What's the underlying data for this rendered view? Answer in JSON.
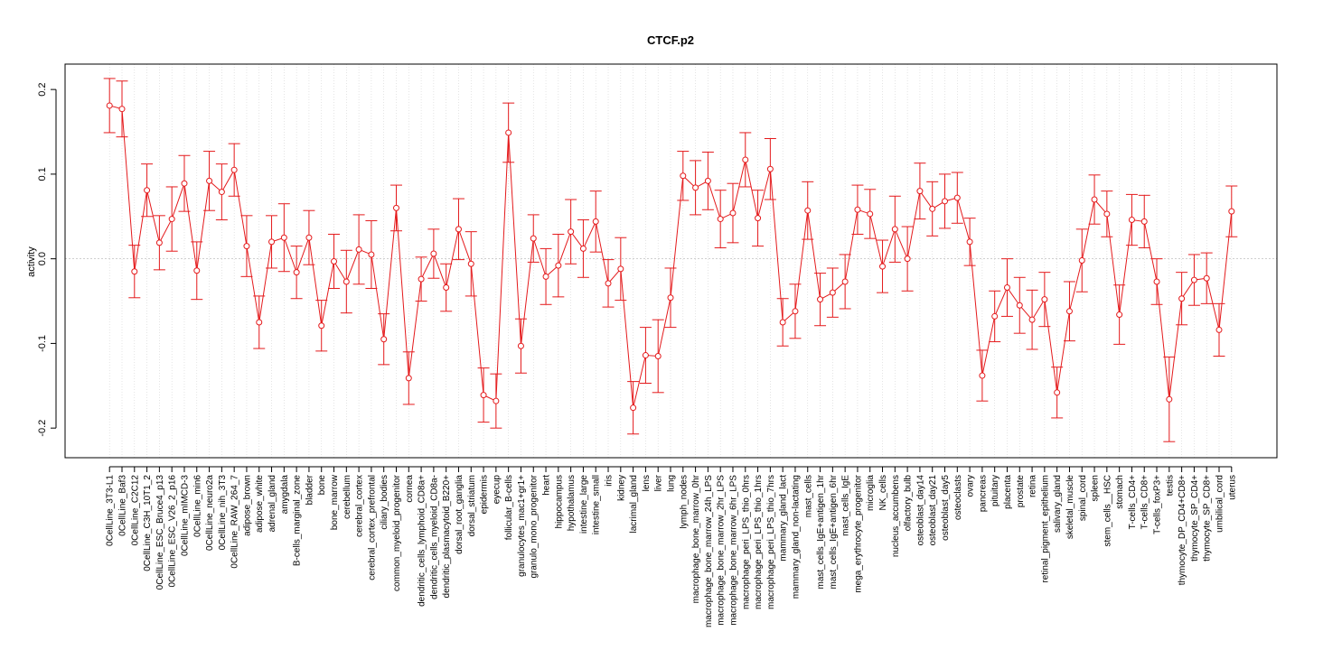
{
  "chart_data": {
    "type": "line",
    "title": "CTCF.p2",
    "xlabel": "",
    "ylabel": "activity",
    "ylim": [
      -0.235,
      0.23
    ],
    "yticks": [
      -0.2,
      -0.1,
      0.0,
      0.1,
      0.2
    ],
    "ytick_labels": [
      "-0.2",
      "-0.1",
      "0.0",
      "0.1",
      "0.2"
    ],
    "grid": true,
    "reference_line": 0,
    "color": "#e41a1c",
    "categories": [
      "0CellLine_3T3-L1",
      "0CellLine_Baf3",
      "0CellLine_C2C12",
      "0CellLine_C3H_10T1_2",
      "0CellLine_ESC_Bruce4_p13",
      "0CellLine_ESC_V26_2_p16",
      "0CellLine_mIMCD-3",
      "0CellLine_min6",
      "0CellLine_neuro2a",
      "0CellLine_nih_3T3",
      "0CellLine_RAW_264_7",
      "adipose_brown",
      "adipose_white",
      "adrenal_gland",
      "amygdala",
      "B-cells_marginal_zone",
      "bladder",
      "bone",
      "bone_marrow",
      "cerebellum",
      "cerebral_cortex",
      "cerebral_cortex_prefrontal",
      "ciliary_bodies",
      "common_myeloid_progenitor",
      "cornea",
      "dendritic_cells_lymphoid_CD8a+",
      "dendritic_cells_myeloid_CD8a-",
      "dendritic_plasmacytoid_B220+",
      "dorsal_root_ganglia",
      "dorsal_striatum",
      "epidermis",
      "eyecup",
      "follicular_B-cells",
      "granulocytes_mac1+gr1+",
      "granulo_mono_progenitor",
      "heart",
      "hippocampus",
      "hypothalamus",
      "intestine_large",
      "intestine_small",
      "iris",
      "kidney",
      "lacrimal_gland",
      "lens",
      "liver",
      "lung",
      "lymph_nodes",
      "macrophage_bone_marrow_0hr",
      "macrophage_bone_marrow_24h_LPS",
      "macrophage_bone_marrow_2hr_LPS",
      "macrophage_bone_marrow_6hr_LPS",
      "macrophage_peri_LPS_thio_0hrs",
      "macrophage_peri_LPS_thio_1hrs",
      "macrophage_peri_LPS_thio_7hrs",
      "mammary_gland_lact",
      "mammary_gland_non-lactating",
      "mast_cells",
      "mast_cells_IgE+antigen_1hr",
      "mast_cells_IgE+antigen_6hr",
      "mast_cells_IgE",
      "mega_erythrocyte_progenitor",
      "microglia",
      "NK_cells",
      "nucleus_accumbens",
      "olfactory_bulb",
      "osteoblast_day14",
      "osteoblast_day21",
      "osteoblast_day5",
      "osteoclasts",
      "ovary",
      "pancreas",
      "pituitary",
      "placenta",
      "prostate",
      "retina",
      "retinal_pigment_epithelium",
      "salivary_gland",
      "skeletal_muscle",
      "spinal_cord",
      "spleen",
      "stem_cells__HSC",
      "stomach",
      "T-cells_CD4+",
      "T-cells_CD8+",
      "T-cells_foxP3+",
      "testis",
      "thymocyte_DP_CD4+CD8+",
      "thymocyte_SP_CD4+",
      "thymocyte_SP_CD8+",
      "umbilical_cord",
      "uterus"
    ],
    "values": [
      0.181,
      0.177,
      -0.015,
      0.081,
      0.019,
      0.047,
      0.089,
      -0.014,
      0.092,
      0.079,
      0.105,
      0.015,
      -0.075,
      0.02,
      0.025,
      -0.016,
      0.025,
      -0.079,
      -0.003,
      -0.027,
      0.011,
      0.005,
      -0.095,
      0.06,
      -0.141,
      -0.024,
      0.006,
      -0.034,
      0.035,
      -0.006,
      -0.161,
      -0.168,
      0.149,
      -0.103,
      0.024,
      -0.021,
      -0.008,
      0.032,
      0.012,
      0.044,
      -0.029,
      -0.012,
      -0.176,
      -0.114,
      -0.115,
      -0.046,
      0.098,
      0.084,
      0.092,
      0.047,
      0.054,
      0.117,
      0.048,
      0.106,
      -0.075,
      -0.062,
      0.057,
      -0.048,
      -0.04,
      -0.027,
      0.058,
      0.053,
      -0.009,
      0.035,
      0.0,
      0.08,
      0.059,
      0.068,
      0.072,
      0.02,
      -0.138,
      -0.068,
      -0.034,
      -0.055,
      -0.072,
      -0.048,
      -0.158,
      -0.062,
      -0.002,
      0.07,
      0.053,
      -0.066,
      0.046,
      0.044,
      -0.027,
      -0.166,
      -0.047,
      -0.025,
      -0.023,
      -0.084,
      0.056
    ],
    "errors": [
      0.032,
      0.033,
      0.031,
      0.031,
      0.032,
      0.038,
      0.033,
      0.034,
      0.035,
      0.033,
      0.031,
      0.036,
      0.031,
      0.031,
      0.04,
      0.031,
      0.032,
      0.03,
      0.032,
      0.037,
      0.041,
      0.04,
      0.03,
      0.027,
      0.031,
      0.026,
      0.029,
      0.028,
      0.036,
      0.038,
      0.032,
      0.032,
      0.035,
      0.032,
      0.028,
      0.033,
      0.037,
      0.038,
      0.034,
      0.036,
      0.028,
      0.037,
      0.031,
      0.033,
      0.043,
      0.035,
      0.029,
      0.032,
      0.034,
      0.034,
      0.035,
      0.032,
      0.033,
      0.036,
      0.028,
      0.032,
      0.034,
      0.031,
      0.029,
      0.032,
      0.029,
      0.029,
      0.031,
      0.039,
      0.038,
      0.033,
      0.032,
      0.032,
      0.03,
      0.028,
      0.03,
      0.03,
      0.034,
      0.033,
      0.035,
      0.032,
      0.03,
      0.035,
      0.037,
      0.029,
      0.027,
      0.035,
      0.03,
      0.031,
      0.027,
      0.05,
      0.031,
      0.03,
      0.03,
      0.031,
      0.03
    ]
  }
}
